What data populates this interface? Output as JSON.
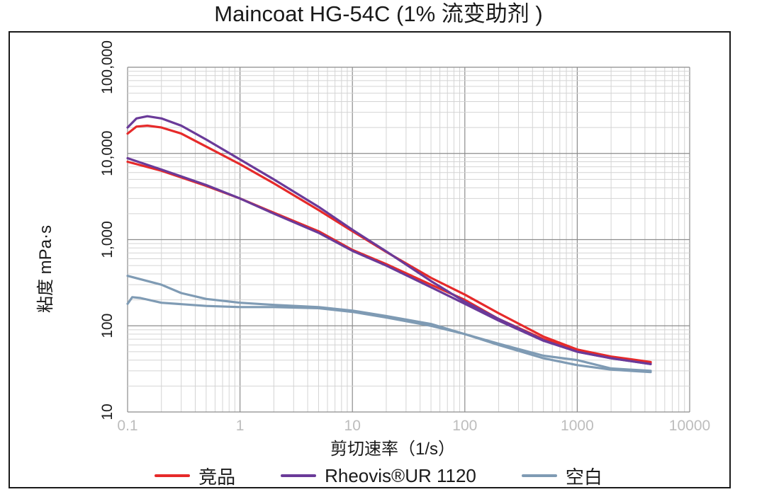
{
  "chart_data": {
    "type": "line",
    "title": "Maincoat HG-54C (1% 流变助剂 )",
    "xlabel": "剪切速率（1/s）",
    "ylabel": "粘度 mPa·s",
    "x_scale": "log",
    "y_scale": "log",
    "xlim": [
      0.1,
      10000
    ],
    "ylim": [
      10,
      100000
    ],
    "x_ticks": [
      "0.1",
      "1",
      "10",
      "100",
      "1000",
      "10000"
    ],
    "y_ticks": [
      "10",
      "100",
      "1,000",
      "10,000",
      "100,000"
    ],
    "grid": true,
    "legend_position": "bottom",
    "series": [
      {
        "name": "竞品",
        "color": "#e62a2a",
        "curves": [
          [
            [
              0.1,
              17000
            ],
            [
              0.12,
              20500
            ],
            [
              0.15,
              21000
            ],
            [
              0.2,
              20000
            ],
            [
              0.3,
              17000
            ],
            [
              0.5,
              12000
            ],
            [
              1,
              7500
            ],
            [
              2,
              4500
            ],
            [
              5,
              2200
            ],
            [
              10,
              1250
            ],
            [
              20,
              720
            ],
            [
              50,
              360
            ],
            [
              100,
              230
            ],
            [
              200,
              140
            ],
            [
              500,
              75
            ],
            [
              1000,
              53
            ],
            [
              2000,
              44
            ],
            [
              4500,
              38
            ]
          ],
          [
            [
              0.1,
              8000
            ],
            [
              0.2,
              6300
            ],
            [
              0.5,
              4200
            ],
            [
              1,
              3000
            ],
            [
              2,
              2050
            ],
            [
              5,
              1250
            ],
            [
              10,
              760
            ],
            [
              20,
              520
            ],
            [
              50,
              300
            ],
            [
              100,
              200
            ],
            [
              200,
              120
            ],
            [
              500,
              70
            ],
            [
              1000,
              53
            ],
            [
              2000,
              43
            ],
            [
              4500,
              37
            ]
          ]
        ]
      },
      {
        "name": "Rheovis®UR 1120",
        "color": "#6a3a99",
        "curves": [
          [
            [
              0.1,
              20000
            ],
            [
              0.12,
              25500
            ],
            [
              0.15,
              27000
            ],
            [
              0.2,
              25500
            ],
            [
              0.3,
              21000
            ],
            [
              0.5,
              14500
            ],
            [
              1,
              8500
            ],
            [
              2,
              5000
            ],
            [
              5,
              2400
            ],
            [
              10,
              1300
            ],
            [
              20,
              730
            ],
            [
              50,
              330
            ],
            [
              100,
              190
            ],
            [
              200,
              120
            ],
            [
              500,
              68
            ],
            [
              1000,
              50
            ],
            [
              2000,
              42
            ],
            [
              4500,
              36
            ]
          ],
          [
            [
              0.1,
              8800
            ],
            [
              0.2,
              6500
            ],
            [
              0.5,
              4300
            ],
            [
              1,
              3000
            ],
            [
              2,
              2000
            ],
            [
              5,
              1200
            ],
            [
              10,
              740
            ],
            [
              20,
              500
            ],
            [
              50,
              280
            ],
            [
              100,
              180
            ],
            [
              200,
              115
            ],
            [
              500,
              67
            ],
            [
              1000,
              50
            ],
            [
              2000,
              42
            ],
            [
              4500,
              36
            ]
          ]
        ]
      },
      {
        "name": "空白",
        "color": "#7f9bb4",
        "curves": [
          [
            [
              0.1,
              380
            ],
            [
              0.2,
              300
            ],
            [
              0.3,
              240
            ],
            [
              0.5,
              205
            ],
            [
              1,
              185
            ],
            [
              2,
              175
            ],
            [
              5,
              165
            ],
            [
              10,
              150
            ],
            [
              20,
              130
            ],
            [
              50,
              105
            ],
            [
              100,
              80
            ],
            [
              200,
              62
            ],
            [
              500,
              45
            ],
            [
              1000,
              40
            ],
            [
              2000,
              32
            ],
            [
              4500,
              30
            ]
          ],
          [
            [
              0.1,
              180
            ],
            [
              0.11,
              215
            ],
            [
              0.13,
              210
            ],
            [
              0.2,
              185
            ],
            [
              0.5,
              170
            ],
            [
              1,
              165
            ],
            [
              2,
              165
            ],
            [
              5,
              160
            ],
            [
              10,
              145
            ],
            [
              20,
              125
            ],
            [
              50,
              100
            ],
            [
              100,
              80
            ],
            [
              200,
              60
            ],
            [
              500,
              42
            ],
            [
              1000,
              35
            ],
            [
              2000,
              31
            ],
            [
              4500,
              29
            ]
          ]
        ]
      }
    ]
  }
}
